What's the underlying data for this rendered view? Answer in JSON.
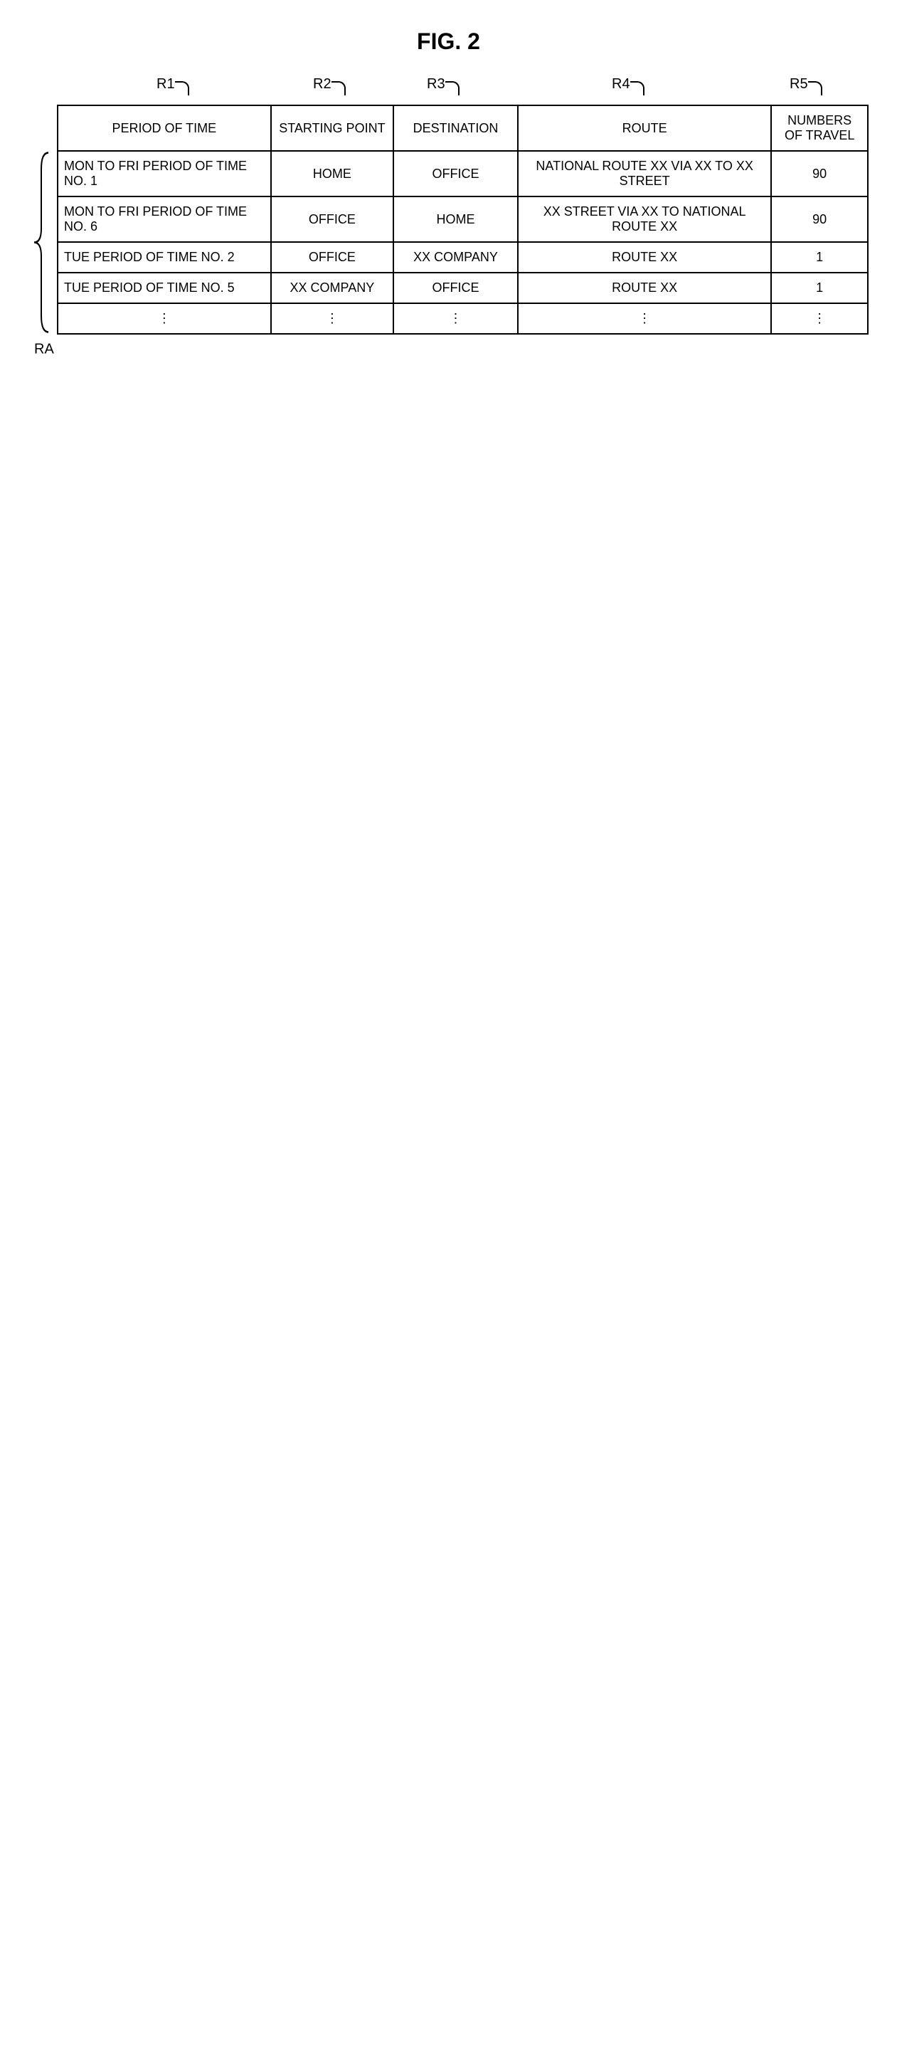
{
  "figure": {
    "title": "FIG. 2"
  },
  "colLabels": {
    "r1": "R1",
    "r2": "R2",
    "r3": "R3",
    "r4": "R4",
    "r5": "R5"
  },
  "sideLabel": "RA",
  "table": {
    "headers": {
      "period": "PERIOD OF TIME",
      "start": "STARTING POINT",
      "dest": "DESTINATION",
      "route": "ROUTE",
      "count": "NUMBERS OF TRAVEL"
    },
    "rows": [
      {
        "period": "MON TO FRI  PERIOD OF TIME NO. 1",
        "start": "HOME",
        "dest": "OFFICE",
        "route": "NATIONAL ROUTE XX VIA XX TO XX STREET",
        "count": "90"
      },
      {
        "period": "MON TO FRI  PERIOD OF TIME NO. 6",
        "start": "OFFICE",
        "dest": "HOME",
        "route": "XX STREET VIA XX TO NATIONAL ROUTE XX",
        "count": "90"
      },
      {
        "period": "TUE  PERIOD OF TIME NO. 2",
        "start": "OFFICE",
        "dest": "XX COMPANY",
        "route": "ROUTE XX",
        "count": "1"
      },
      {
        "period": "TUE  PERIOD OF TIME NO. 5",
        "start": "XX COMPANY",
        "dest": "OFFICE",
        "route": "ROUTE XX",
        "count": "1"
      },
      {
        "period": "⋮",
        "start": "⋮",
        "dest": "⋮",
        "route": "⋮",
        "count": "⋮"
      }
    ]
  },
  "style": {
    "border_color": "#000000",
    "background_color": "#ffffff",
    "font_size_table": 18,
    "font_size_label": 20,
    "font_size_title": 32
  }
}
